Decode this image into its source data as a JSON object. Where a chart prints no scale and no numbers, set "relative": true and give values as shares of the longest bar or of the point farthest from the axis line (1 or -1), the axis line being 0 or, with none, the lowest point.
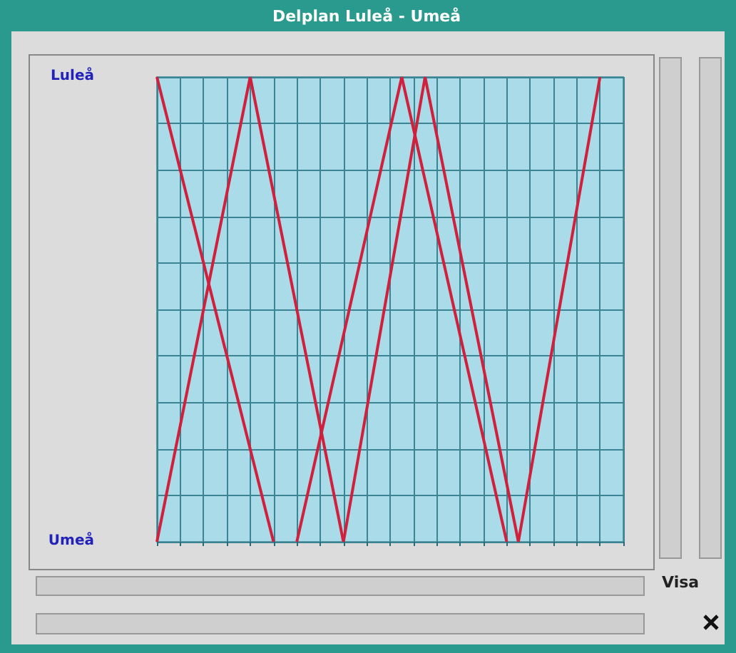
{
  "chart_data": {
    "type": "line",
    "title": "Delplan Luleå - Umeå",
    "categories": [
      null,
      null,
      null,
      null,
      null,
      null,
      null,
      null,
      null,
      null,
      null,
      null,
      null,
      null,
      null,
      null,
      null,
      null,
      null,
      null,
      null,
      null,
      null,
      null,
      null,
      null,
      null,
      null,
      null,
      null,
      null,
      null,
      null,
      null,
      null,
      null,
      null,
      null,
      null,
      null,
      null
    ],
    "relative": true,
    "grid": true,
    "line_style": "solid",
    "annotations": [
      "Luleå",
      "Umeå",
      "Visa"
    ],
    "series": [
      {
        "color": "#d0203c",
        "values": [
          1,
          null,
          null,
          null,
          null,
          null,
          null,
          null,
          null,
          null,
          0,
          null,
          null,
          null,
          null,
          null,
          null,
          null,
          null,
          null,
          null,
          null,
          null,
          null,
          null,
          null,
          null,
          null,
          null,
          null,
          null,
          null,
          null,
          null,
          null,
          null,
          null,
          null,
          null,
          null,
          null
        ]
      },
      {
        "color": "#d0203c",
        "values": [
          0,
          null,
          null,
          null,
          null,
          null,
          null,
          null,
          1,
          null,
          null,
          null,
          null,
          null,
          null,
          null,
          null,
          null,
          null,
          null,
          null,
          null,
          null,
          null,
          null,
          null,
          null,
          null,
          null,
          null,
          null,
          null,
          null,
          null,
          null,
          null,
          null,
          null,
          null,
          null,
          null
        ]
      },
      {
        "color": "#d0203c",
        "values": [
          null,
          null,
          null,
          null,
          null,
          null,
          null,
          null,
          1,
          null,
          null,
          null,
          null,
          null,
          null,
          null,
          0,
          null,
          null,
          null,
          null,
          null,
          null,
          null,
          null,
          null,
          null,
          null,
          null,
          null,
          null,
          null,
          null,
          null,
          null,
          null,
          null,
          null,
          null,
          null,
          null
        ]
      },
      {
        "color": "#d0203c",
        "values": [
          null,
          null,
          null,
          null,
          null,
          null,
          null,
          null,
          null,
          null,
          null,
          null,
          0,
          null,
          null,
          null,
          null,
          null,
          null,
          null,
          null,
          1,
          null,
          null,
          null,
          null,
          null,
          null,
          null,
          null,
          null,
          null,
          null,
          null,
          null,
          null,
          null,
          null,
          null,
          null,
          null
        ]
      },
      {
        "color": "#d0203c",
        "values": [
          null,
          null,
          null,
          null,
          null,
          null,
          null,
          null,
          null,
          null,
          null,
          null,
          null,
          null,
          null,
          null,
          0,
          null,
          null,
          null,
          null,
          null,
          null,
          1,
          null,
          null,
          null,
          null,
          null,
          null,
          null,
          null,
          null,
          null,
          null,
          null,
          null,
          null,
          null,
          null,
          null
        ]
      },
      {
        "color": "#d0203c",
        "values": [
          null,
          null,
          null,
          null,
          null,
          null,
          null,
          null,
          null,
          null,
          null,
          null,
          null,
          null,
          null,
          null,
          null,
          null,
          null,
          null,
          null,
          1,
          null,
          null,
          null,
          null,
          null,
          null,
          null,
          null,
          0,
          null,
          null,
          null,
          null,
          null,
          null,
          null,
          null,
          null,
          null
        ]
      },
      {
        "color": "#d0203c",
        "values": [
          null,
          null,
          null,
          null,
          null,
          null,
          null,
          null,
          null,
          null,
          null,
          null,
          null,
          null,
          null,
          null,
          null,
          null,
          null,
          null,
          null,
          null,
          null,
          1,
          null,
          null,
          null,
          null,
          null,
          null,
          null,
          0,
          null,
          null,
          null,
          null,
          null,
          null,
          null,
          null,
          null
        ]
      },
      {
        "color": "#d0203c",
        "values": [
          null,
          null,
          null,
          null,
          null,
          null,
          null,
          null,
          null,
          null,
          null,
          null,
          null,
          null,
          null,
          null,
          null,
          null,
          null,
          null,
          null,
          null,
          null,
          null,
          null,
          null,
          null,
          null,
          null,
          null,
          null,
          0,
          null,
          null,
          null,
          null,
          null,
          null,
          1,
          null,
          null
        ]
      }
    ]
  }
}
